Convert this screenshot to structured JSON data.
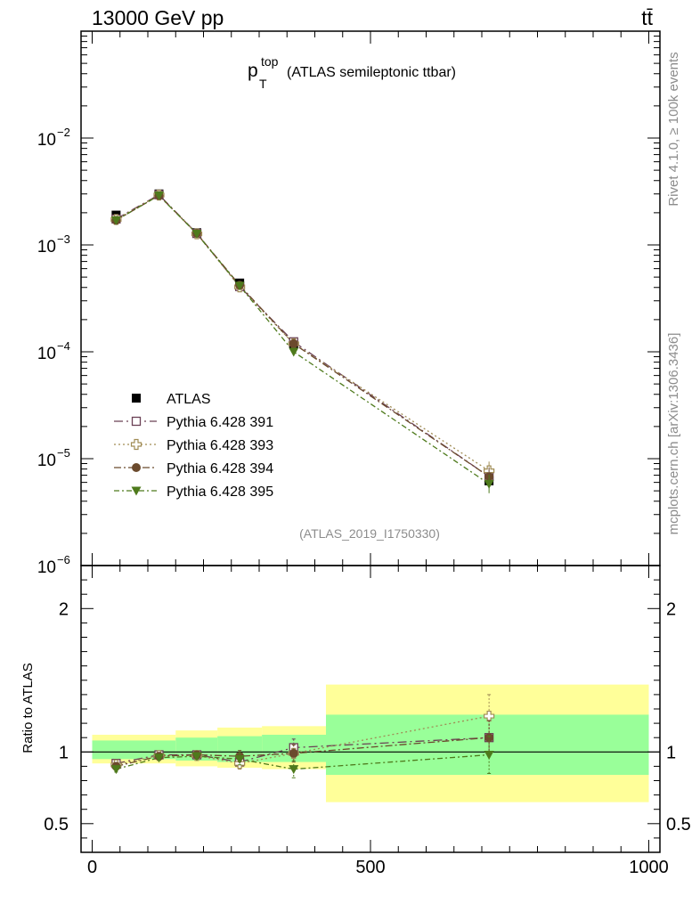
{
  "header": {
    "energy_label": "13000 GeV pp",
    "process_label": "tt̄"
  },
  "side": {
    "rivet_label": "Rivet 4.1.0, ≥ 100k events",
    "source_label": "mcplots.cern.ch [arXiv:1306.3436]"
  },
  "colors": {
    "data": "#000000",
    "p391": "#6b4155",
    "p393": "#a08c55",
    "p394": "#6b4a2d",
    "p395": "#4e7a1c",
    "band_outer": "#ffff99",
    "band_inner": "#99ff99"
  },
  "chart_data": {
    "type": "line",
    "title_main": "p",
    "title_sup": "top",
    "title_sub": "T",
    "title_rest": "(ATLAS semileptonic ttbar)",
    "watermark": "(ATLAS_2019_I1750330)",
    "ratio_ylabel": "Ratio to ATLAS",
    "xlim": [
      -20,
      1020
    ],
    "upper_ylim": [
      1e-06,
      0.1
    ],
    "ratio_ylim": [
      0.3,
      2.3
    ],
    "x_ticks": [
      0,
      500,
      1000
    ],
    "x_tick_labels": [
      "0",
      "500",
      "1000"
    ],
    "upper_yticks": [
      {
        "base": "10",
        "exp": "−2",
        "value": 0.01
      },
      {
        "base": "10",
        "exp": "−3",
        "value": 0.001
      },
      {
        "base": "10",
        "exp": "−4",
        "value": 0.0001
      },
      {
        "base": "10",
        "exp": "−5",
        "value": 1e-05
      },
      {
        "base": "10",
        "exp": "−6",
        "value": 1e-06
      }
    ],
    "ratio_yticks": [
      {
        "label": "2",
        "value": 2
      },
      {
        "label": "1",
        "value": 1
      },
      {
        "label": "0.5",
        "value": 0.5
      }
    ],
    "bins": [
      {
        "x": 43,
        "lo": 0,
        "hi": 80
      },
      {
        "x": 120,
        "lo": 80,
        "hi": 150
      },
      {
        "x": 188,
        "lo": 150,
        "hi": 225
      },
      {
        "x": 265,
        "lo": 225,
        "hi": 305
      },
      {
        "x": 362,
        "lo": 305,
        "hi": 420
      },
      {
        "x": 713,
        "lo": 420,
        "hi": 1000
      }
    ],
    "data": {
      "name": "ATLAS",
      "values": [
        0.0019,
        0.003,
        0.0013,
        0.00044,
        0.00012,
        6.2e-06
      ],
      "band_outer": [
        [
          0.92,
          1.12
        ],
        [
          0.92,
          1.12
        ],
        [
          0.9,
          1.15
        ],
        [
          0.89,
          1.17
        ],
        [
          0.88,
          1.18
        ],
        [
          0.65,
          1.47
        ]
      ],
      "band_inner": [
        [
          0.95,
          1.08
        ],
        [
          0.95,
          1.08
        ],
        [
          0.94,
          1.1
        ],
        [
          0.93,
          1.11
        ],
        [
          0.93,
          1.12
        ],
        [
          0.84,
          1.26
        ]
      ]
    },
    "series": [
      {
        "name": "Pythia 6.428 391",
        "color_key": "p391",
        "marker": "open-square",
        "dash": "10,4,2,4",
        "values": [
          0.00175,
          0.00295,
          0.00128,
          0.000408,
          0.000124,
          6.8e-06
        ],
        "ratio": [
          0.92,
          0.98,
          0.98,
          0.93,
          1.03,
          1.1
        ],
        "ratio_err": [
          0.02,
          0.015,
          0.02,
          0.04,
          0.06,
          0.12
        ]
      },
      {
        "name": "Pythia 6.428 393",
        "color_key": "p393",
        "marker": "open-cross",
        "dash": "2,3",
        "values": [
          0.00173,
          0.00293,
          0.00127,
          0.000405,
          0.000119,
          7.7e-06
        ],
        "ratio": [
          0.91,
          0.975,
          0.975,
          0.92,
          0.99,
          1.25
        ],
        "ratio_err": [
          0.02,
          0.015,
          0.02,
          0.04,
          0.06,
          0.15
        ]
      },
      {
        "name": "Pythia 6.428 394",
        "color_key": "p394",
        "marker": "dot",
        "dash": "8,3,2,3",
        "values": [
          0.0017,
          0.0029,
          0.00128,
          0.00042,
          0.000119,
          6.8e-06
        ],
        "ratio": [
          0.9,
          0.97,
          0.98,
          0.97,
          0.99,
          1.1
        ],
        "ratio_err": [
          0.02,
          0.015,
          0.02,
          0.04,
          0.06,
          0.12
        ]
      },
      {
        "name": "Pythia 6.428 395",
        "color_key": "p395",
        "marker": "triangle-down",
        "dash": "6,3,2,3",
        "values": [
          0.0017,
          0.0029,
          0.00127,
          0.000415,
          0.0001,
          5.8e-06
        ],
        "ratio": [
          0.88,
          0.96,
          0.97,
          0.95,
          0.88,
          0.98
        ],
        "ratio_err": [
          0.02,
          0.015,
          0.02,
          0.04,
          0.06,
          0.13
        ]
      }
    ]
  }
}
